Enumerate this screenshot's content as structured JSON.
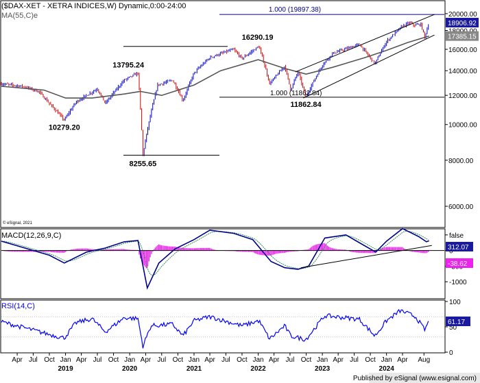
{
  "price_panel": {
    "title": "($DAX-XET - XETRA INDICES,W) Dynamic,0:00-24:00",
    "ma_label": "MA(55,C)e",
    "credit": "© eSignal, 2021"
  },
  "macd_panel": {
    "label": "MACD(12,26,9,C)"
  },
  "rsi_panel": {
    "label": "RSI(14,C)"
  },
  "footer": "Published by eSignal (www.esignal.com)",
  "colors": {
    "frame": "#000000",
    "bull_bar": "#0000cc",
    "bear_bar": "#cc0000",
    "ma": "#555555",
    "macd": "#00008b",
    "signal": "#2e8b57",
    "hist": "#ee22ee",
    "rsi": "#0000ff",
    "fib": "#00008b",
    "label_box": "#1a1aa0"
  },
  "chart_data": [
    {
      "type": "line",
      "panel": "price",
      "scale": "log",
      "ylim": [
        5300,
        21500
      ],
      "yticks": [
        "20000.00",
        "18000.00",
        "16000.00",
        "14000.00",
        "12000.00",
        "10000.00",
        "8000.00",
        "6000.00"
      ],
      "ytick_values": [
        20000,
        18000,
        16000,
        14000,
        12000,
        10000,
        8000,
        6000
      ],
      "price_points": [
        [
          "2018-01-01",
          12900
        ],
        [
          "2018-05-01",
          12700
        ],
        [
          "2018-08-01",
          12300
        ],
        [
          "2018-10-01",
          11400
        ],
        [
          "2018-12-25",
          10279.2
        ],
        [
          "2019-03-01",
          11500
        ],
        [
          "2019-07-01",
          12500
        ],
        [
          "2019-08-15",
          11400
        ],
        [
          "2019-12-01",
          13200
        ],
        [
          "2020-02-17",
          13795.24
        ],
        [
          "2020-03-16",
          8255.65
        ],
        [
          "2020-06-08",
          12800
        ],
        [
          "2020-09-01",
          13200
        ],
        [
          "2020-10-30",
          11600
        ],
        [
          "2021-01-01",
          13800
        ],
        [
          "2021-04-01",
          15200
        ],
        [
          "2021-08-13",
          16000
        ],
        [
          "2021-10-01",
          15100
        ],
        [
          "2022-01-05",
          16290.19
        ],
        [
          "2022-03-07",
          12900
        ],
        [
          "2022-06-01",
          14400
        ],
        [
          "2022-07-05",
          12400
        ],
        [
          "2022-08-15",
          13900
        ],
        [
          "2022-09-29",
          11862.84
        ],
        [
          "2023-01-01",
          14500
        ],
        [
          "2023-03-01",
          15600
        ],
        [
          "2023-07-31",
          16500
        ],
        [
          "2023-10-27",
          14600
        ],
        [
          "2024-01-01",
          16800
        ],
        [
          "2024-04-01",
          18500
        ],
        [
          "2024-05-15",
          18900
        ],
        [
          "2024-06-01",
          18600
        ],
        [
          "2024-07-15",
          18700
        ],
        [
          "2024-08-05",
          17250
        ],
        [
          "2024-08-30",
          18906.92
        ]
      ],
      "ma_points": [
        [
          "2018-01-01",
          12700
        ],
        [
          "2018-09-01",
          12400
        ],
        [
          "2019-01-01",
          11800
        ],
        [
          "2019-06-01",
          11800
        ],
        [
          "2019-12-01",
          12100
        ],
        [
          "2020-03-01",
          12300
        ],
        [
          "2020-07-01",
          12000
        ],
        [
          "2021-01-01",
          12800
        ],
        [
          "2021-06-01",
          14000
        ],
        [
          "2022-01-01",
          15000
        ],
        [
          "2022-06-01",
          14200
        ],
        [
          "2022-10-01",
          13700
        ],
        [
          "2023-03-01",
          14300
        ],
        [
          "2023-09-01",
          15200
        ],
        [
          "2024-01-01",
          15900
        ],
        [
          "2024-05-01",
          16700
        ],
        [
          "2024-08-30",
          17385.15
        ]
      ],
      "last_price": "18906.92",
      "ma_value": "17385.15",
      "annotations": [
        {
          "text": "10279.20",
          "x": "2018-12-25",
          "y": 10279.2
        },
        {
          "text": "13795.24",
          "x": "2020-02-17",
          "y": 13795.24
        },
        {
          "text": "8255.65",
          "x": "2020-03-16",
          "y": 8255.65
        },
        {
          "text": "16290.19",
          "x": "2022-01-05",
          "y": 16290.19
        },
        {
          "text": "11862.84",
          "x": "2022-09-29",
          "y": 11862.84
        }
      ],
      "fib_lines": [
        {
          "text": "1.000 (19897.38)",
          "value": 19897.38
        },
        {
          "text": "1.000 (11862.84)",
          "value": 11862.84
        }
      ],
      "channel": {
        "upper": [
          [
            "2022-08-01",
            13900
          ],
          [
            "2024-09-30",
            19900
          ]
        ],
        "lower": [
          [
            "2022-09-15",
            11800
          ],
          [
            "2024-09-30",
            17500
          ]
        ]
      }
    },
    {
      "type": "line",
      "panel": "macd",
      "ylim": [
        -1500,
        650
      ],
      "yticks": [
        "500",
        "0",
        "-500",
        "-1000"
      ],
      "ytick_values": [
        500,
        0,
        -500,
        -1000
      ],
      "macd_value": "312.07",
      "signal_hist_value": "-38.62",
      "macd_points": [
        [
          "2018-01-01",
          300
        ],
        [
          "2018-10-01",
          -150
        ],
        [
          "2018-12-25",
          -400
        ],
        [
          "2019-05-01",
          -50
        ],
        [
          "2019-08-15",
          80
        ],
        [
          "2019-12-01",
          280
        ],
        [
          "2020-02-17",
          320
        ],
        [
          "2020-04-10",
          -1200
        ],
        [
          "2020-06-15",
          -400
        ],
        [
          "2020-09-15",
          50
        ],
        [
          "2021-01-01",
          350
        ],
        [
          "2021-04-01",
          650
        ],
        [
          "2021-08-15",
          550
        ],
        [
          "2021-12-01",
          350
        ],
        [
          "2022-03-15",
          -350
        ],
        [
          "2022-06-01",
          -550
        ],
        [
          "2022-08-15",
          -600
        ],
        [
          "2022-10-15",
          -500
        ],
        [
          "2023-01-15",
          400
        ],
        [
          "2023-05-15",
          500
        ],
        [
          "2023-08-15",
          200
        ],
        [
          "2023-11-01",
          -50
        ],
        [
          "2024-01-01",
          300
        ],
        [
          "2024-04-01",
          700
        ],
        [
          "2024-07-01",
          450
        ],
        [
          "2024-08-15",
          280
        ],
        [
          "2024-08-30",
          312.07
        ]
      ],
      "trendline": [
        [
          "2022-09-01",
          -550
        ],
        [
          "2024-09-15",
          160
        ]
      ]
    },
    {
      "type": "line",
      "panel": "rsi",
      "ylim": [
        0,
        100
      ],
      "yticks": [
        "100",
        "50",
        "0"
      ],
      "ytick_values": [
        100,
        50,
        0
      ],
      "rsi_value": "61.17",
      "rsi_points": [
        [
          "2018-01-01",
          60
        ],
        [
          "2018-10-01",
          35
        ],
        [
          "2018-12-25",
          28
        ],
        [
          "2019-03-01",
          58
        ],
        [
          "2019-06-01",
          66
        ],
        [
          "2019-08-15",
          40
        ],
        [
          "2019-12-01",
          68
        ],
        [
          "2020-02-17",
          66
        ],
        [
          "2020-03-16",
          12
        ],
        [
          "2020-05-01",
          52
        ],
        [
          "2020-09-01",
          55
        ],
        [
          "2020-10-30",
          32
        ],
        [
          "2021-01-01",
          62
        ],
        [
          "2021-04-01",
          70
        ],
        [
          "2021-10-01",
          52
        ],
        [
          "2022-01-05",
          62
        ],
        [
          "2022-03-07",
          26
        ],
        [
          "2022-06-01",
          52
        ],
        [
          "2022-07-05",
          32
        ],
        [
          "2022-09-29",
          25
        ],
        [
          "2023-01-15",
          72
        ],
        [
          "2023-07-31",
          65
        ],
        [
          "2023-10-27",
          32
        ],
        [
          "2024-01-01",
          62
        ],
        [
          "2024-03-20",
          82
        ],
        [
          "2024-06-15",
          70
        ],
        [
          "2024-08-05",
          44
        ],
        [
          "2024-08-30",
          61.17
        ]
      ]
    }
  ],
  "x_axis": {
    "labels": [
      {
        "text": "Apr",
        "date": "2018-04-01"
      },
      {
        "text": "Jul",
        "date": "2018-07-01"
      },
      {
        "text": "Oct",
        "date": "2018-10-01"
      },
      {
        "text": "Jan",
        "date": "2019-01-01"
      },
      {
        "text": "Apr",
        "date": "2019-04-01"
      },
      {
        "text": "Jul",
        "date": "2019-07-01"
      },
      {
        "text": "Oct",
        "date": "2019-10-01"
      },
      {
        "text": "Jan",
        "date": "2020-01-01"
      },
      {
        "text": "Apr",
        "date": "2020-04-01"
      },
      {
        "text": "Jul",
        "date": "2020-07-01"
      },
      {
        "text": "Oct",
        "date": "2020-10-01"
      },
      {
        "text": "Jan",
        "date": "2021-01-01"
      },
      {
        "text": "Apr",
        "date": "2021-04-01"
      },
      {
        "text": "Jul",
        "date": "2021-07-01"
      },
      {
        "text": "Oct",
        "date": "2021-10-01"
      },
      {
        "text": "Jan",
        "date": "2022-01-01"
      },
      {
        "text": "Apr",
        "date": "2022-04-01"
      },
      {
        "text": "Jul",
        "date": "2022-07-01"
      },
      {
        "text": "Oct",
        "date": "2022-10-01"
      },
      {
        "text": "Jan",
        "date": "2023-01-01"
      },
      {
        "text": "Apr",
        "date": "2023-04-01"
      },
      {
        "text": "Jul",
        "date": "2023-07-01"
      },
      {
        "text": "Oct",
        "date": "2023-10-01"
      },
      {
        "text": "Jan",
        "date": "2024-01-01"
      },
      {
        "text": "Apr",
        "date": "2024-04-01"
      },
      {
        "text": "Aug",
        "date": "2024-08-01"
      }
    ],
    "years": [
      {
        "text": "2019",
        "date": "2019-01-01"
      },
      {
        "text": "2020",
        "date": "2020-01-01"
      },
      {
        "text": "2021",
        "date": "2021-01-01"
      },
      {
        "text": "2022",
        "date": "2022-01-01"
      },
      {
        "text": "2023",
        "date": "2023-01-01"
      },
      {
        "text": "2024",
        "date": "2024-01-01"
      }
    ]
  }
}
